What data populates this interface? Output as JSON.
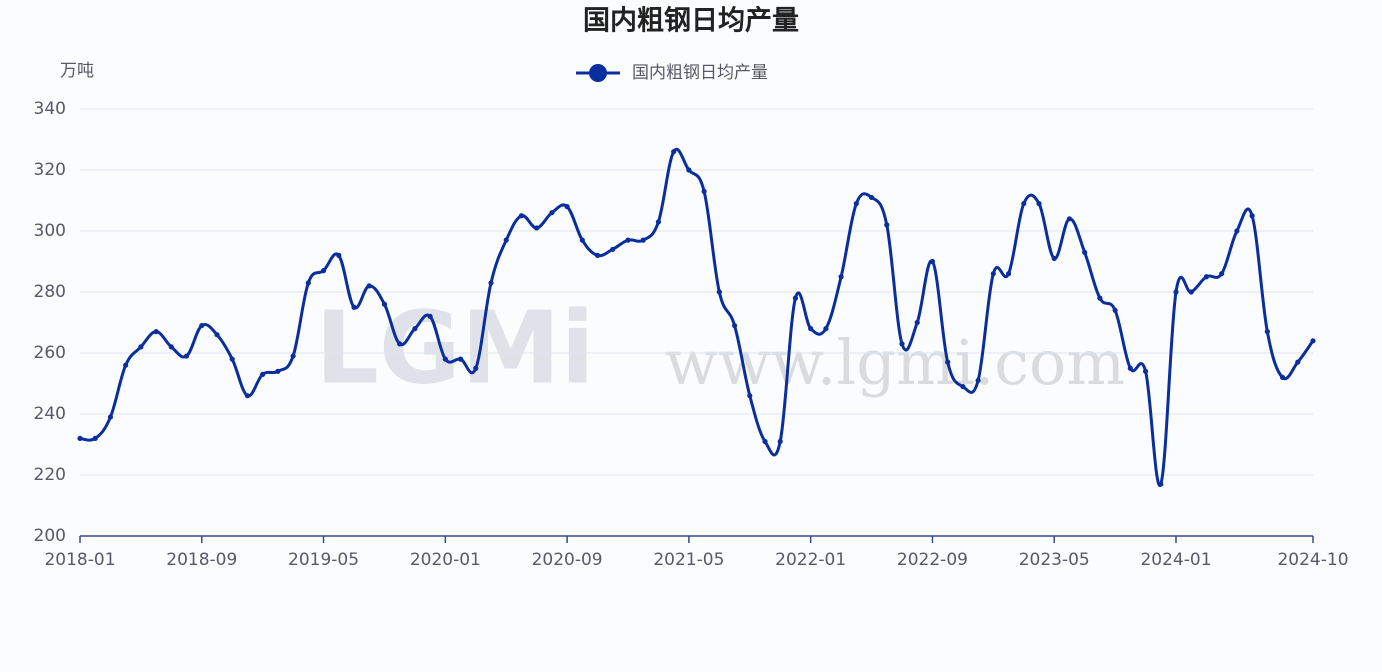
{
  "chart_data": {
    "type": "line",
    "title": "国内粗钢日均产量",
    "y_unit": "万吨",
    "watermark": [
      "LGMi",
      "www.lgmi.com"
    ],
    "x": [
      "2018-01",
      "2018-02",
      "2018-03",
      "2018-04",
      "2018-05",
      "2018-06",
      "2018-07",
      "2018-08",
      "2018-09",
      "2018-10",
      "2018-11",
      "2018-12",
      "2019-01",
      "2019-02",
      "2019-03",
      "2019-04",
      "2019-05",
      "2019-06",
      "2019-07",
      "2019-08",
      "2019-09",
      "2019-10",
      "2019-11",
      "2019-12",
      "2020-01",
      "2020-02",
      "2020-03",
      "2020-04",
      "2020-05",
      "2020-06",
      "2020-07",
      "2020-08",
      "2020-09",
      "2020-10",
      "2020-11",
      "2020-12",
      "2021-01",
      "2021-02",
      "2021-03",
      "2021-04",
      "2021-05",
      "2021-06",
      "2021-07",
      "2021-08",
      "2021-09",
      "2021-10",
      "2021-11",
      "2021-12",
      "2022-01",
      "2022-02",
      "2022-03",
      "2022-04",
      "2022-05",
      "2022-06",
      "2022-07",
      "2022-08",
      "2022-09",
      "2022-10",
      "2022-11",
      "2022-12",
      "2023-01",
      "2023-02",
      "2023-03",
      "2023-04",
      "2023-05",
      "2023-06",
      "2023-07",
      "2023-08",
      "2023-09",
      "2023-10",
      "2023-11",
      "2023-12",
      "2024-01",
      "2024-02",
      "2024-03",
      "2024-04",
      "2024-05",
      "2024-06",
      "2024-07",
      "2024-08",
      "2024-09",
      "2024-10"
    ],
    "series": [
      {
        "name": "国内粗钢日均产量",
        "color": "#0a2e9e",
        "values": [
          232,
          232,
          239,
          256,
          262,
          267,
          262,
          259,
          269,
          266,
          258,
          246,
          253,
          254,
          259,
          283,
          287,
          292,
          275,
          282,
          276,
          263,
          268,
          272,
          258,
          258,
          255,
          283,
          297,
          305,
          301,
          306,
          308,
          297,
          292,
          294,
          297,
          297,
          303,
          326,
          320,
          313,
          280,
          269,
          246,
          231,
          231,
          278,
          268,
          268,
          285,
          309,
          311,
          302,
          263,
          270,
          290,
          257,
          249,
          251,
          286,
          286,
          309,
          309,
          291,
          304,
          293,
          278,
          274,
          255,
          254,
          217,
          280,
          280,
          285,
          286,
          300,
          305,
          267,
          252,
          257,
          264
        ]
      }
    ],
    "xlim": [
      "2018-01",
      "2024-10"
    ],
    "xticks": [
      "2018-01",
      "2018-09",
      "2019-05",
      "2020-01",
      "2020-09",
      "2021-05",
      "2022-01",
      "2022-09",
      "2023-05",
      "2024-01",
      "2024-10"
    ],
    "ylim": [
      200,
      340
    ],
    "yticks": [
      200,
      220,
      240,
      260,
      280,
      300,
      320,
      340
    ],
    "grid": true,
    "legend": "top"
  }
}
